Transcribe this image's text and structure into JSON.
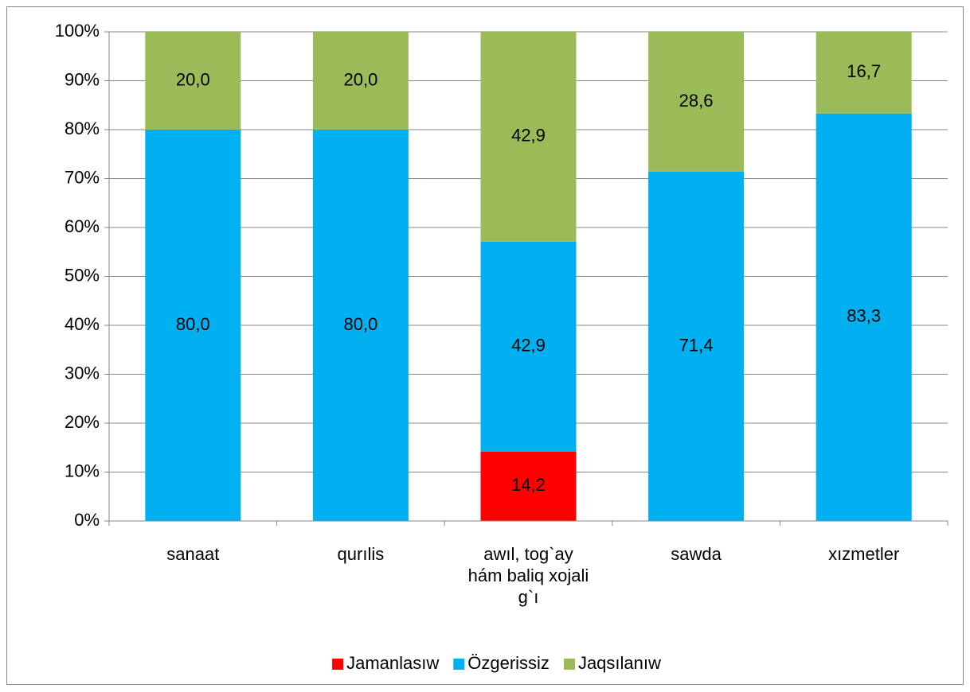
{
  "chart_data": {
    "type": "stacked-bar-100",
    "categories": [
      "sanaat",
      "qurılis",
      "awıl, tog`ay\nhám baliq xojali\ng`ı",
      "sawda",
      "xızmetler"
    ],
    "series": [
      {
        "name": "Jamanlasıw",
        "color": "#ff0000",
        "values": [
          null,
          null,
          14.2,
          null,
          null
        ],
        "value_labels": [
          null,
          null,
          "14,2",
          null,
          null
        ]
      },
      {
        "name": "Özgerissiz",
        "color": "#00b0f0",
        "values": [
          80.0,
          80.0,
          42.9,
          71.4,
          83.3
        ],
        "value_labels": [
          "80,0",
          "80,0",
          "42,9",
          "71,4",
          "83,3"
        ]
      },
      {
        "name": "Jaqsılanıw",
        "color": "#9bbb59",
        "values": [
          20.0,
          20.0,
          42.9,
          28.6,
          16.7
        ],
        "value_labels": [
          "20,0",
          "20,0",
          "42,9",
          "28,6",
          "16,7"
        ]
      }
    ],
    "ylim": [
      0,
      100
    ],
    "yticks": [
      {
        "value": 0,
        "label": "0%"
      },
      {
        "value": 10,
        "label": "10%"
      },
      {
        "value": 20,
        "label": "20%"
      },
      {
        "value": 30,
        "label": "30%"
      },
      {
        "value": 40,
        "label": "40%"
      },
      {
        "value": 50,
        "label": "50%"
      },
      {
        "value": 60,
        "label": "60%"
      },
      {
        "value": 70,
        "label": "70%"
      },
      {
        "value": 80,
        "label": "80%"
      },
      {
        "value": 90,
        "label": "90%"
      },
      {
        "value": 100,
        "label": "100%"
      }
    ],
    "grid": true,
    "legend": "bottom"
  }
}
